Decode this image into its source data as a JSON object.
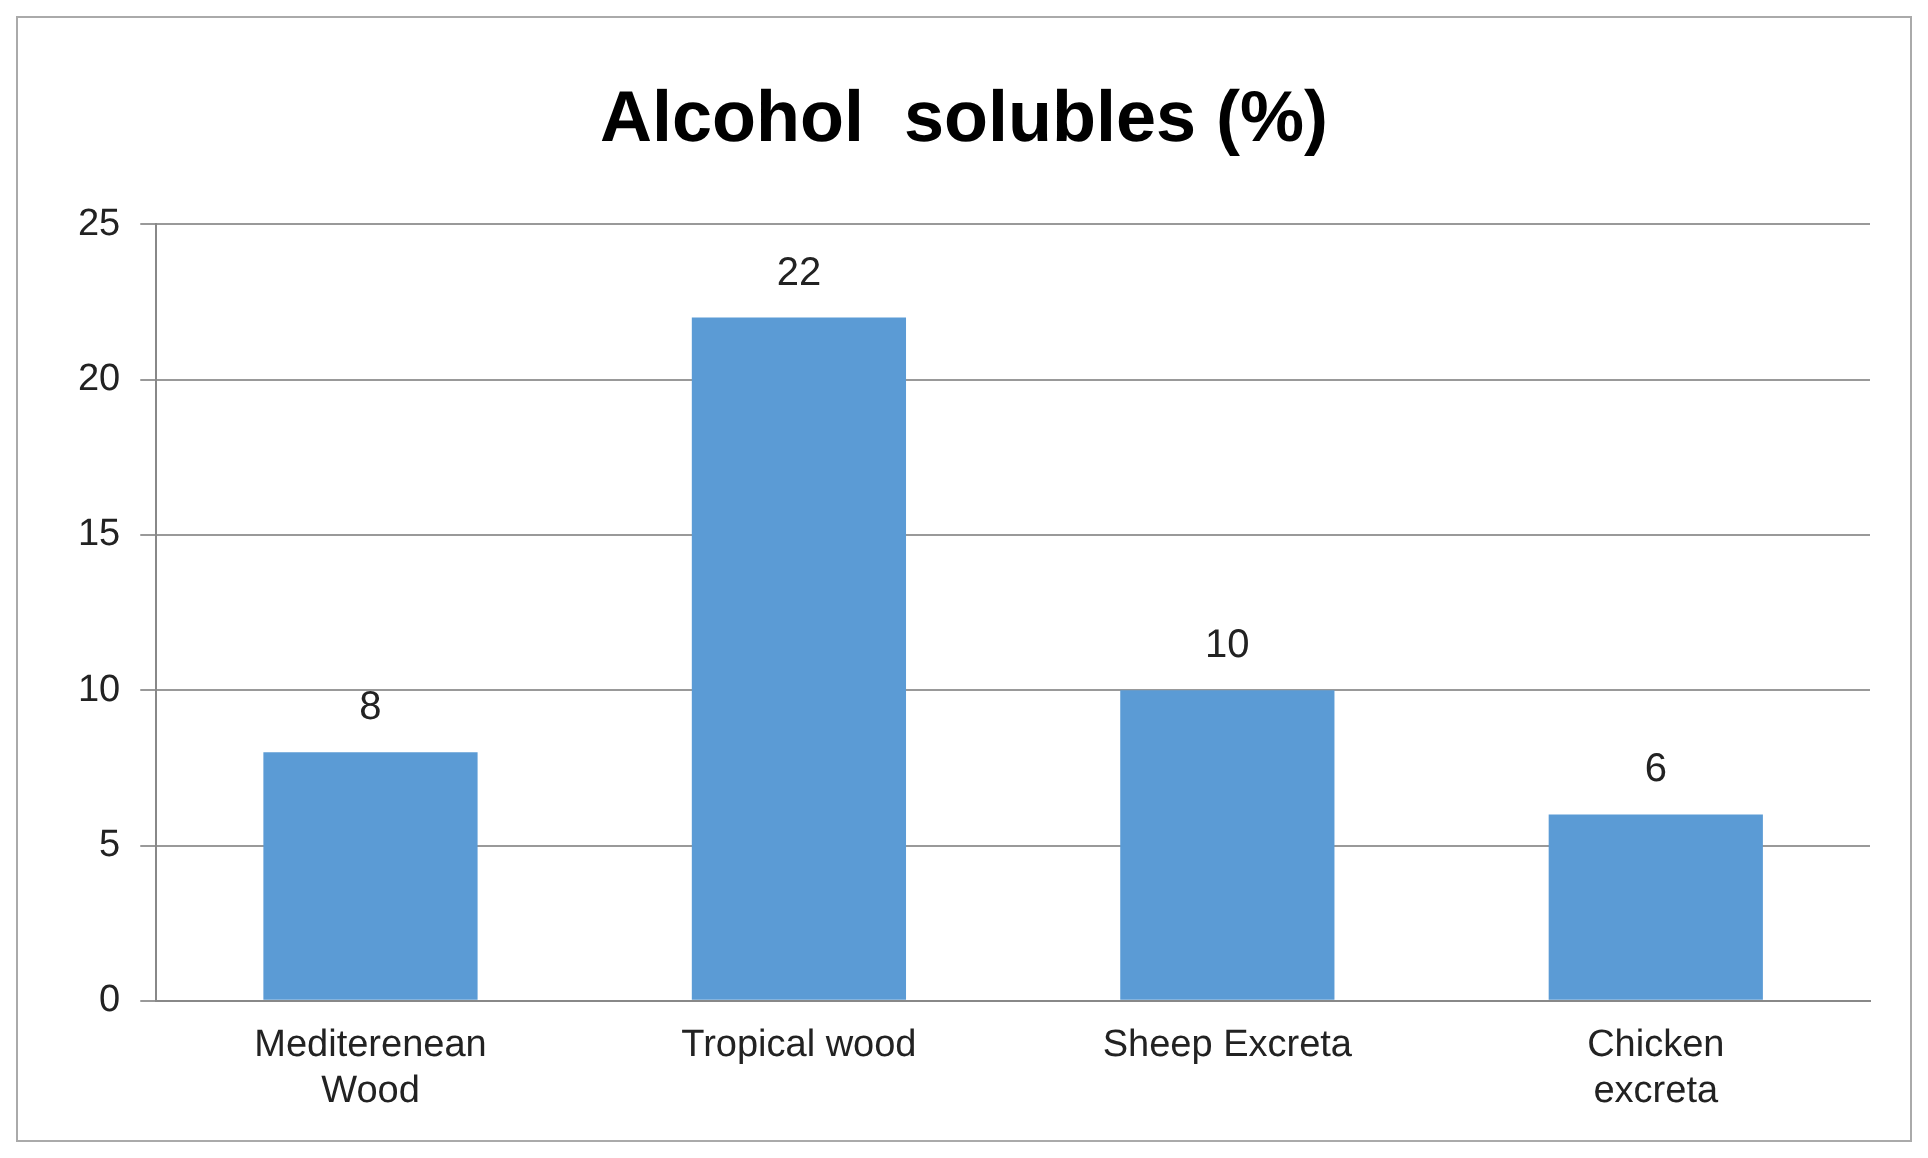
{
  "chart_data": {
    "type": "bar",
    "title": "Alcohol  solubles (%)",
    "categories": [
      "Mediterenean Wood",
      "Tropical wood",
      "Sheep Excreta",
      "Chicken excreta"
    ],
    "values": [
      8,
      22,
      10,
      6
    ],
    "color": "#5b9bd5",
    "ylim": [
      0,
      25
    ],
    "yticks": [
      0,
      5,
      10,
      15,
      20,
      25
    ],
    "grid": "y",
    "data_labels": true,
    "legend": false
  }
}
